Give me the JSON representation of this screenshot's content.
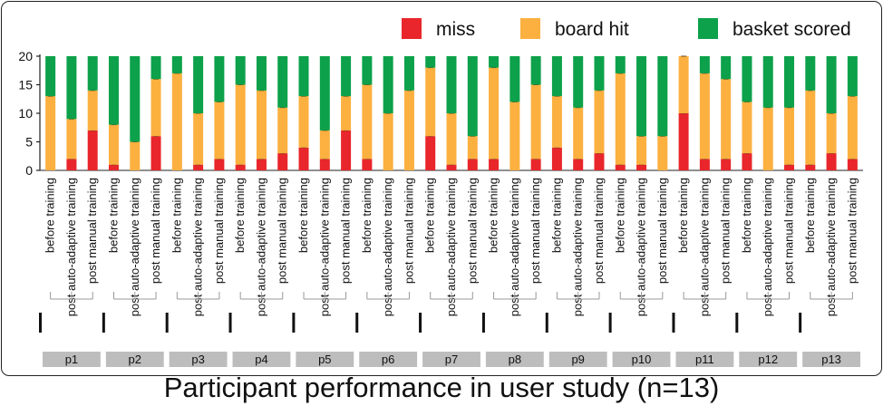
{
  "chart_data": {
    "type": "bar",
    "stacked": true,
    "title": "Participant performance in user study (n=13)",
    "ylim": [
      0,
      20
    ],
    "yticks": [
      0,
      5,
      10,
      15,
      20
    ],
    "conditions": [
      "before training",
      "post auto-adaptive training",
      "post manual training"
    ],
    "groups": [
      "p1",
      "p2",
      "p3",
      "p4",
      "p5",
      "p6",
      "p7",
      "p8",
      "p9",
      "p10",
      "p11",
      "p12",
      "p13"
    ],
    "legend_position": "top-right",
    "series": [
      {
        "name": "miss",
        "color": "#e8262b",
        "values": [
          0,
          2,
          7,
          1,
          0,
          6,
          0,
          1,
          2,
          1,
          2,
          3,
          4,
          2,
          7,
          2,
          0,
          0,
          6,
          1,
          2,
          2,
          0,
          2,
          4,
          2,
          3,
          1,
          1,
          0,
          10,
          2,
          2,
          3,
          0,
          1,
          1,
          3,
          2
        ]
      },
      {
        "name": "board hit",
        "color": "#fbb040",
        "values": [
          13,
          7,
          7,
          7,
          5,
          10,
          17,
          9,
          10,
          14,
          12,
          8,
          9,
          5,
          6,
          13,
          10,
          14,
          12,
          9,
          4,
          16,
          12,
          13,
          9,
          9,
          11,
          16,
          5,
          6,
          10,
          15,
          14,
          9,
          11,
          10,
          13,
          7,
          11
        ]
      },
      {
        "name": "basket scored",
        "color": "#0ca14a",
        "values": [
          7,
          11,
          6,
          12,
          15,
          4,
          3,
          10,
          8,
          5,
          6,
          9,
          7,
          13,
          7,
          5,
          10,
          6,
          2,
          10,
          14,
          2,
          8,
          5,
          7,
          9,
          6,
          3,
          14,
          14,
          0,
          3,
          4,
          8,
          9,
          9,
          6,
          10,
          7
        ]
      }
    ]
  }
}
